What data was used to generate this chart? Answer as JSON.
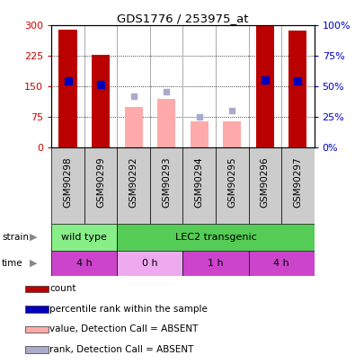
{
  "title": "GDS1776 / 253975_at",
  "samples": [
    "GSM90298",
    "GSM90299",
    "GSM90292",
    "GSM90293",
    "GSM90294",
    "GSM90295",
    "GSM90296",
    "GSM90297"
  ],
  "count_values": [
    290,
    228,
    null,
    120,
    null,
    null,
    298,
    288
  ],
  "absent_value_bars": [
    null,
    null,
    100,
    120,
    65,
    65,
    null,
    null
  ],
  "rank_present": [
    163,
    155,
    null,
    null,
    null,
    null,
    165,
    163
  ],
  "rank_absent": [
    null,
    null,
    127,
    137,
    75,
    90,
    null,
    null
  ],
  "ylim_left": [
    0,
    300
  ],
  "ylim_right": [
    0,
    100
  ],
  "yticks_left": [
    0,
    75,
    150,
    225,
    300
  ],
  "yticks_right": [
    0,
    25,
    50,
    75,
    100
  ],
  "ytick_labels_left": [
    "0",
    "75",
    "150",
    "225",
    "300"
  ],
  "ytick_labels_right": [
    "0%",
    "25%",
    "50%",
    "75%",
    "100%"
  ],
  "strain_groups": [
    {
      "label": "wild type",
      "cols": [
        0,
        1
      ],
      "color": "#88ee88"
    },
    {
      "label": "LEC2 transgenic",
      "cols": [
        2,
        3,
        4,
        5,
        6,
        7
      ],
      "color": "#55cc55"
    }
  ],
  "time_groups": [
    {
      "label": "4 h",
      "cols": [
        0,
        1
      ],
      "color": "#cc44cc"
    },
    {
      "label": "0 h",
      "cols": [
        2,
        3
      ],
      "color": "#eeaaee"
    },
    {
      "label": "1 h",
      "cols": [
        4,
        5
      ],
      "color": "#cc44cc"
    },
    {
      "label": "4 h",
      "cols": [
        6,
        7
      ],
      "color": "#cc44cc"
    }
  ],
  "legend_items": [
    {
      "label": "count",
      "color": "#bb0000"
    },
    {
      "label": "percentile rank within the sample",
      "color": "#0000bb"
    },
    {
      "label": "value, Detection Call = ABSENT",
      "color": "#ffaaaa"
    },
    {
      "label": "rank, Detection Call = ABSENT",
      "color": "#aaaacc"
    }
  ],
  "bar_width": 0.55,
  "col_bg_color": "#cccccc",
  "plot_bg": "#ffffff",
  "left_label_color": "#cc0000",
  "right_label_color": "#0000cc",
  "red_bar_color": "#bb0000",
  "pink_bar_color": "#ffaaaa",
  "blue_dot_color": "#0000bb",
  "lblue_dot_color": "#aaaacc"
}
